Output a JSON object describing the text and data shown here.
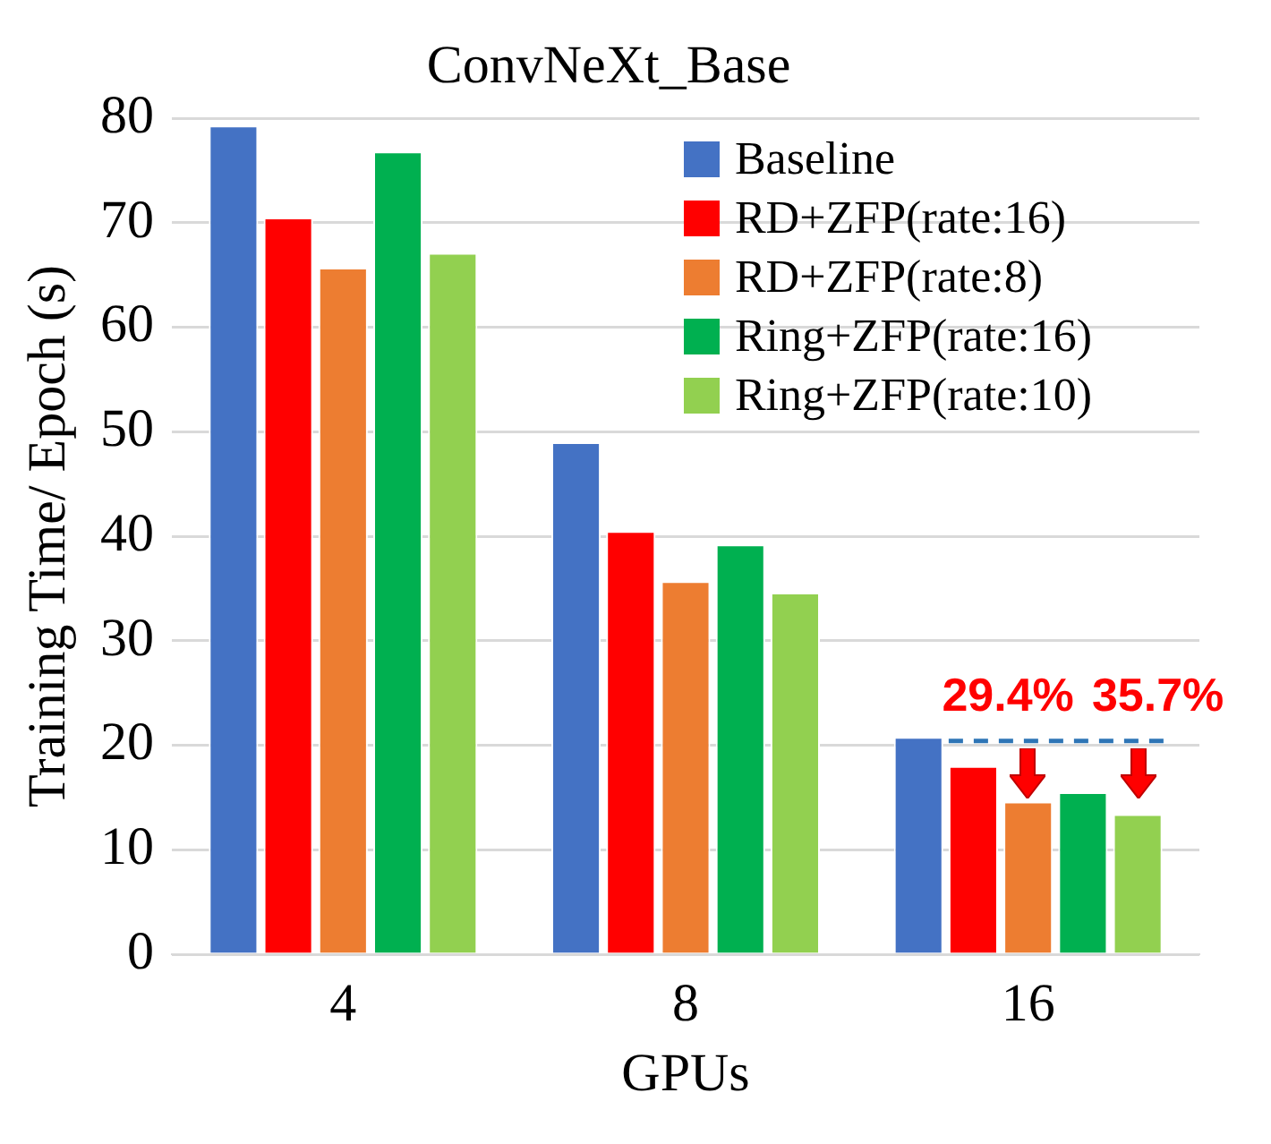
{
  "chart_data": {
    "type": "bar",
    "title": "ConvNeXt_Base",
    "xlabel": "GPUs",
    "ylabel": "Training Time/ Epoch (s)",
    "categories": [
      "4",
      "8",
      "16"
    ],
    "series": [
      {
        "name": "Baseline",
        "color": "#4472c4",
        "values": [
          79.3,
          49.0,
          20.8
        ]
      },
      {
        "name": "RD+ZFP(rate:16)",
        "color": "#ff0000",
        "values": [
          70.5,
          40.5,
          18.0
        ]
      },
      {
        "name": "RD+ZFP(rate:8)",
        "color": "#ed7d31",
        "values": [
          65.7,
          35.7,
          14.6
        ]
      },
      {
        "name": "Ring+ZFP(rate:16)",
        "color": "#00b050",
        "values": [
          76.8,
          39.2,
          15.5
        ]
      },
      {
        "name": "Ring+ZFP(rate:10)",
        "color": "#92d050",
        "values": [
          67.1,
          34.6,
          13.4
        ]
      }
    ],
    "ylim": [
      0,
      80
    ],
    "yticks": [
      0,
      10,
      20,
      30,
      40,
      50,
      60,
      70,
      80
    ],
    "grid": "y",
    "legend": "top right",
    "ref_lines": [
      {
        "axis": "y",
        "value": 20.4,
        "color": "#2e75b6",
        "line_style": "dashed"
      }
    ],
    "annotations": [
      "29.4%",
      "35.7%"
    ]
  }
}
